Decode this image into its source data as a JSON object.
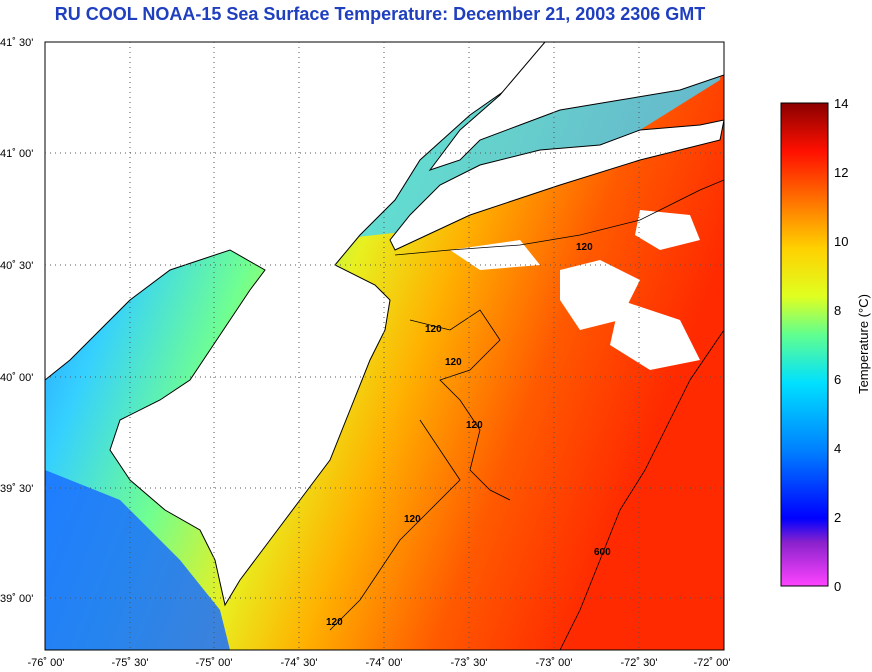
{
  "title": "RU COOL  NOAA-15  Sea Surface Temperature:  December 21, 2003 2306 GMT",
  "map": {
    "lat_labels": [
      "41˚ 30'",
      "41˚ 00'",
      "40˚ 30'",
      "40˚ 00'",
      "39˚ 30'",
      "39˚ 00'"
    ],
    "lon_labels": [
      "-76˚ 00'",
      "-75˚ 30'",
      "-75˚ 00'",
      "-74˚ 30'",
      "-74˚ 00'",
      "-73˚ 30'",
      "-73˚ 00'",
      "-72˚ 30'",
      "-72˚ 00'"
    ],
    "contour_labels": [
      "120",
      "120",
      "120",
      "120",
      "120",
      "120",
      "600"
    ],
    "land_color": "#ffffff",
    "coastline_color": "#000000"
  },
  "colorbar": {
    "label": "Temperature (°C)",
    "ticks": [
      "14",
      "12",
      "10",
      "8",
      "6",
      "4",
      "2",
      "0"
    ],
    "min": 0,
    "max": 14,
    "colors": [
      "#ff44ff",
      "#8a22cc",
      "#0000ff",
      "#0080ff",
      "#00e0ff",
      "#60ff90",
      "#e0ff20",
      "#ffd000",
      "#ff7000",
      "#ff1000",
      "#8a0000"
    ]
  }
}
